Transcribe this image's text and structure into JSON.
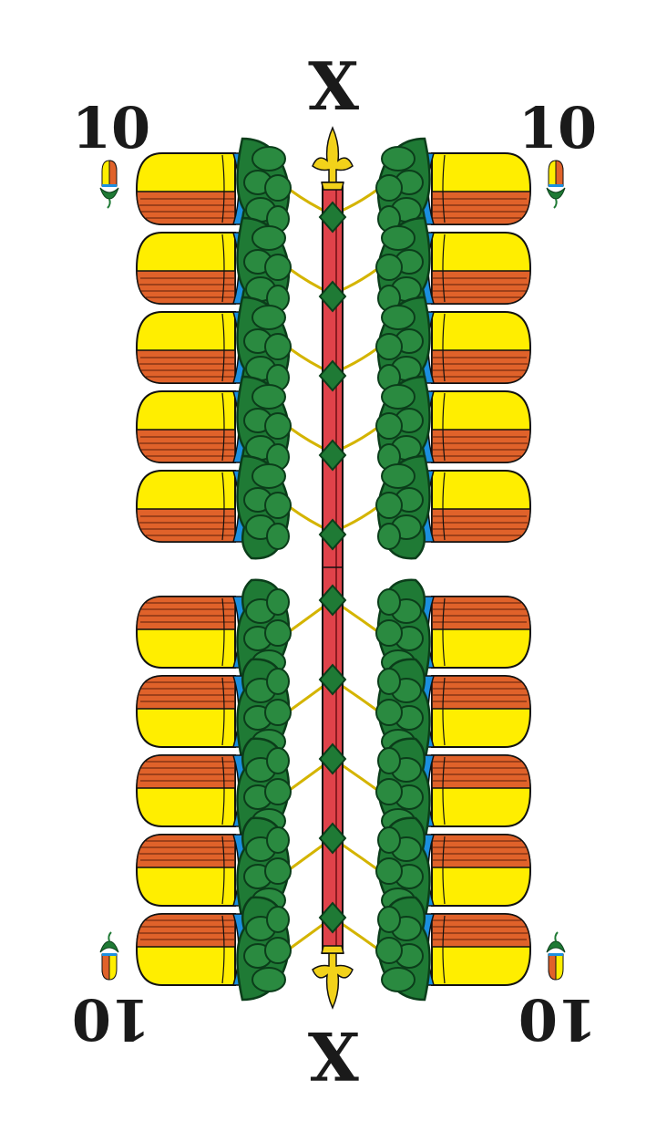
{
  "card": {
    "rank_number": "10",
    "rank_roman": "X",
    "suit_icon": "acorn-icon",
    "acorn_count": 20
  },
  "colors": {
    "cup_yellow": "#ffee00",
    "cup_orange": "#e0622a",
    "band_blue": "#1b8fe0",
    "leaf_green": "#1f7a35",
    "leaf_dark": "#0b3d1a",
    "stem_red": "#e0424a",
    "gold": "#f2d21a",
    "outline": "#111111"
  }
}
